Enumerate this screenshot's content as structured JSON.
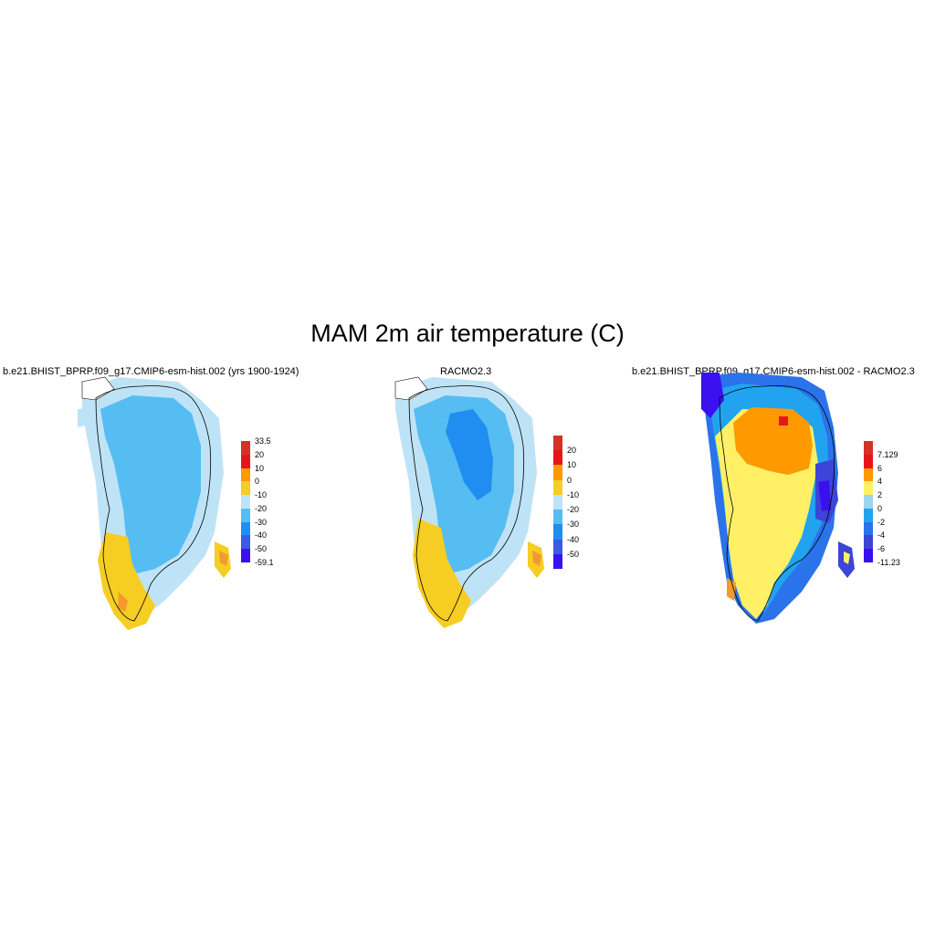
{
  "title": "MAM 2m air temperature (C)",
  "panels": [
    {
      "title": "b.e21.BHIST_BPRP.f09_g17.CMIP6-esm-hist.002 (yrs 1900-1924)",
      "colorbar": {
        "labels": [
          "33.5",
          "20",
          "10",
          "0",
          "-10",
          "-20",
          "-30",
          "-40",
          "-50",
          "-59.1"
        ],
        "colors": [
          "#d73027",
          "#e8141c",
          "#ff9900",
          "#f6cd22",
          "#bfe3f6",
          "#56bdf2",
          "#1f8ef0",
          "#3c5ae6",
          "#3a10f0"
        ]
      }
    },
    {
      "title": "RACMO2.3",
      "colorbar": {
        "labels": [
          "20",
          "10",
          "0",
          "-10",
          "-20",
          "-30",
          "-40",
          "-50"
        ],
        "colors": [
          "#d73027",
          "#e8141c",
          "#ff9900",
          "#f6cd22",
          "#bfe3f6",
          "#56bdf2",
          "#1f8ef0",
          "#3c5ae6",
          "#3a10f0"
        ]
      }
    },
    {
      "title": "b.e21.BHIST_BPRP.f09_g17.CMIP6-esm-hist.002 - RACMO2.3",
      "colorbar": {
        "labels": [
          "7.129",
          "6",
          "4",
          "2",
          "0",
          "-2",
          "-4",
          "-6",
          "-11.23"
        ],
        "colors": [
          "#d73027",
          "#e8141c",
          "#ff9900",
          "#fff066",
          "#9ed3f0",
          "#22a3f0",
          "#2a73ea",
          "#3c45d8",
          "#3a10f0"
        ]
      }
    }
  ]
}
